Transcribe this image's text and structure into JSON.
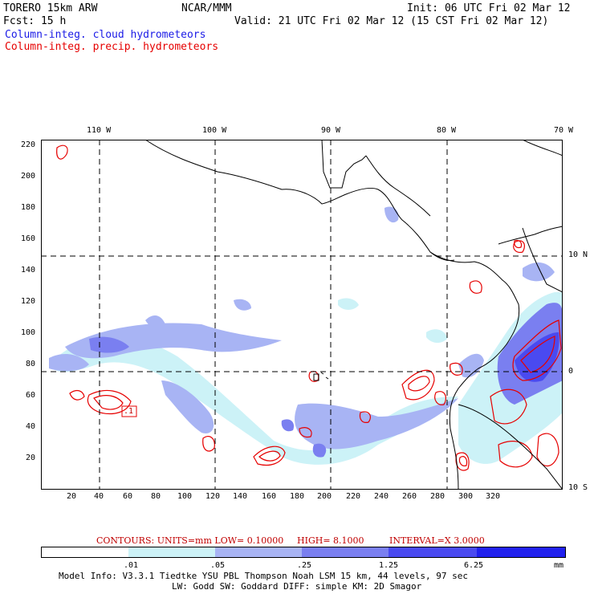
{
  "header": {
    "title_left": "TORERO  15km ARW",
    "org": "NCAR/MMM",
    "init": "Init: 06 UTC Fri 02 Mar 12",
    "fcst": "Fcst:   15 h",
    "valid": "Valid: 21 UTC Fri 02 Mar 12 (15 CST Fri 02 Mar 12)",
    "field_blue": "Column-integ. cloud hydrometeors",
    "field_red": "Column-integ. precip. hydrometeors"
  },
  "map": {
    "lon_labels": [
      "110 W",
      "100 W",
      "90 W",
      "80 W",
      "70 W"
    ],
    "lat_labels": [
      "10 N",
      "0",
      "10 S"
    ],
    "y_ticks": [
      "220",
      "200",
      "180",
      "160",
      "140",
      "120",
      "100",
      "80",
      "60",
      "40",
      "20"
    ],
    "x_ticks": [
      "20",
      "40",
      "60",
      "80",
      "100",
      "120",
      "140",
      "160",
      "180",
      "200",
      "220",
      "240",
      "260",
      "280",
      "300",
      "320"
    ],
    "contour_box_label": ".1"
  },
  "contours": {
    "units_text": "CONTOURS:  UNITS=mm  LOW= 0.10000",
    "high_text": "HIGH=  8.1000",
    "interval_text": "INTERVAL=X  3.0000"
  },
  "colorbar": {
    "colors": [
      "#ffffff",
      "#ccf2f7",
      "#a8b4f4",
      "#7a7ff0",
      "#4a4af0",
      "#2020ee"
    ],
    "labels": [
      ".01",
      ".05",
      ".25",
      "1.25",
      "6.25"
    ],
    "unit": "mm"
  },
  "model_info": {
    "line1": "Model Info: V3.3.1   Tiedtke YSU PBL  Thompson    Noah LSM  15 km,   44 levels,   97 sec",
    "line2": "LW: Godd SW: Goddard DIFF: simple KM: 2D Smagor"
  }
}
